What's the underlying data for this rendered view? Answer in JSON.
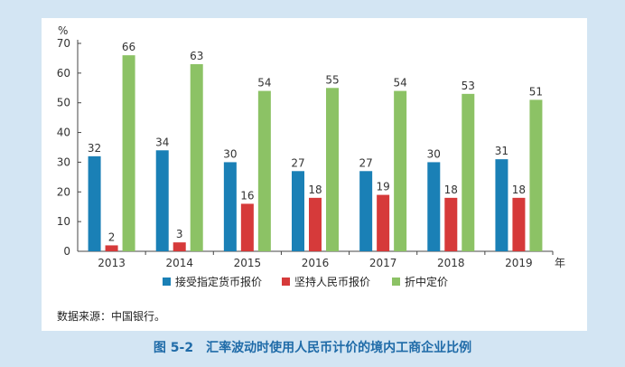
{
  "chart_data": {
    "type": "bar",
    "y_unit_label": "%",
    "x_unit_label": "年",
    "categories": [
      "2013",
      "2014",
      "2015",
      "2016",
      "2017",
      "2018",
      "2019"
    ],
    "ylim": [
      0,
      70
    ],
    "yticks": [
      0,
      10,
      20,
      30,
      40,
      50,
      60,
      70
    ],
    "grid": false,
    "legend_position": "bottom",
    "series": [
      {
        "name": "接受指定货币报价",
        "color": "#1a80b6",
        "values": [
          32,
          34,
          30,
          27,
          27,
          30,
          31
        ]
      },
      {
        "name": "坚持人民币报价",
        "color": "#d63a3a",
        "values": [
          2,
          3,
          16,
          18,
          19,
          18,
          18
        ]
      },
      {
        "name": "折中定价",
        "color": "#8cc265",
        "values": [
          66,
          63,
          54,
          55,
          54,
          53,
          51
        ]
      }
    ]
  },
  "source": "数据来源：中国银行。",
  "caption": "图 5-2　汇率波动时使用人民币计价的境内工商企业比例"
}
